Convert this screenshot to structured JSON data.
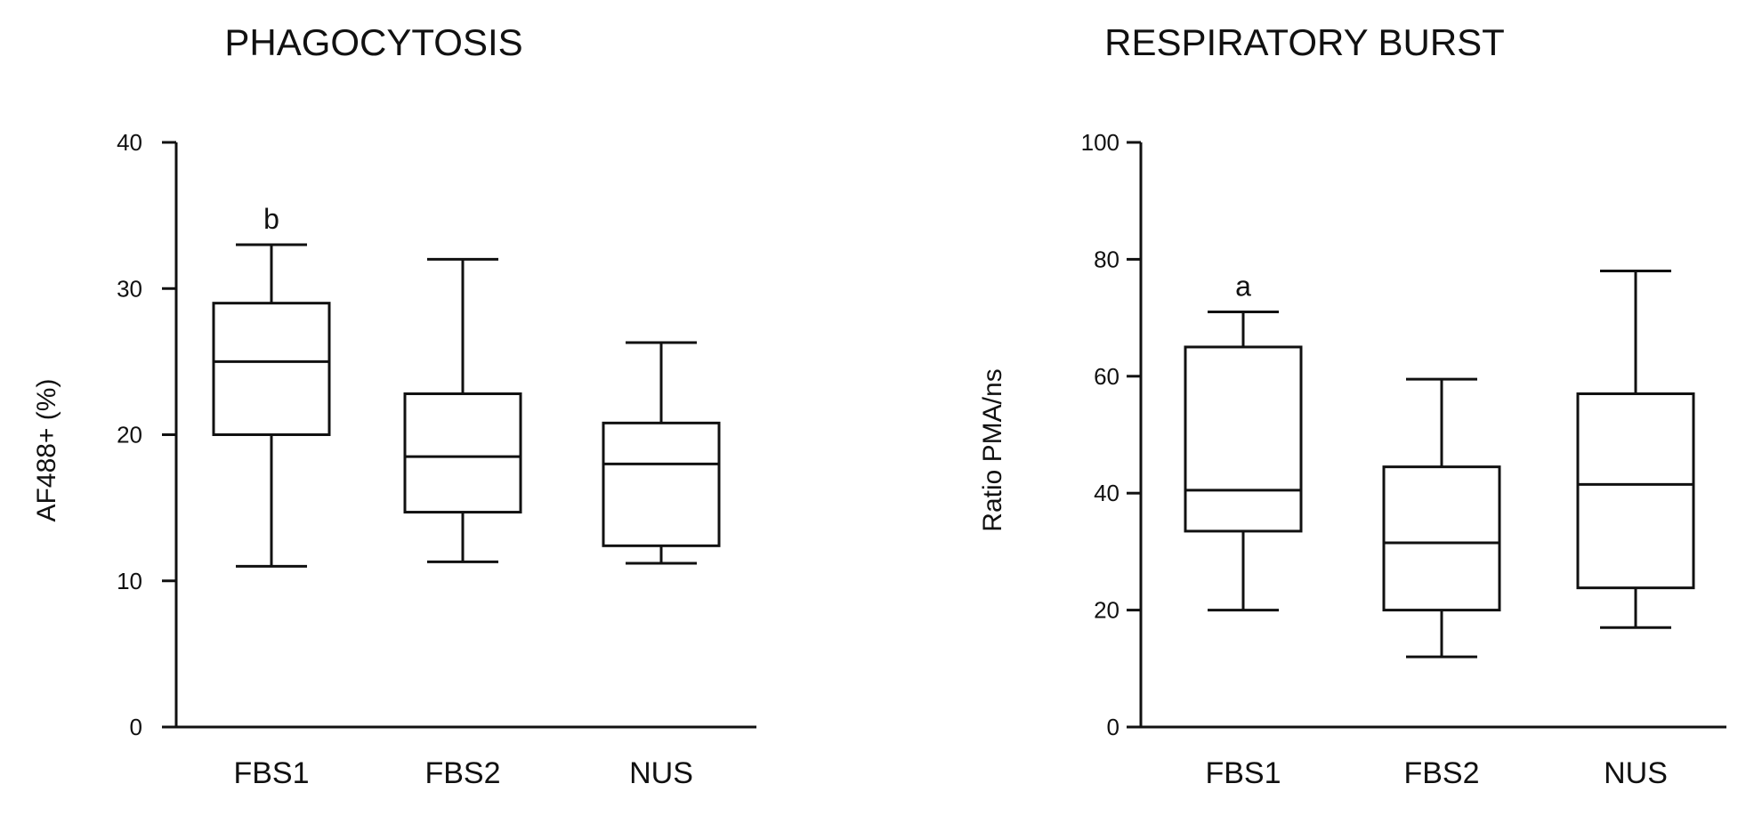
{
  "chart_data": [
    {
      "type": "boxplot",
      "title": "PHAGOCYTOSIS",
      "xlabel": "",
      "ylabel": "AF488+ (%)",
      "ylim": [
        0,
        40
      ],
      "yticks": [
        0,
        10,
        20,
        30,
        40
      ],
      "categories": [
        "FBS1",
        "FBS2",
        "NUS"
      ],
      "boxes": [
        {
          "category": "FBS1",
          "min": 11,
          "q1": 20,
          "median": 25,
          "q3": 29,
          "max": 33,
          "annotation": "b"
        },
        {
          "category": "FBS2",
          "min": 11.3,
          "q1": 14.7,
          "median": 18.5,
          "q3": 22.8,
          "max": 32,
          "annotation": ""
        },
        {
          "category": "NUS",
          "min": 11.2,
          "q1": 12.4,
          "median": 18,
          "q3": 20.8,
          "max": 26.3,
          "annotation": ""
        }
      ]
    },
    {
      "type": "boxplot",
      "title": "RESPIRATORY BURST",
      "xlabel": "",
      "ylabel": "Ratio PMA/ns",
      "ylim": [
        0,
        100
      ],
      "yticks": [
        0,
        20,
        40,
        60,
        80,
        100
      ],
      "categories": [
        "FBS1",
        "FBS2",
        "NUS"
      ],
      "boxes": [
        {
          "category": "FBS1",
          "min": 20,
          "q1": 33.5,
          "median": 40.5,
          "q3": 65,
          "max": 71,
          "annotation": "a"
        },
        {
          "category": "FBS2",
          "min": 12,
          "q1": 20,
          "median": 31.5,
          "q3": 44.5,
          "max": 59.5,
          "annotation": ""
        },
        {
          "category": "NUS",
          "min": 17,
          "q1": 23.8,
          "median": 41.5,
          "q3": 57,
          "max": 78,
          "annotation": ""
        }
      ]
    }
  ]
}
